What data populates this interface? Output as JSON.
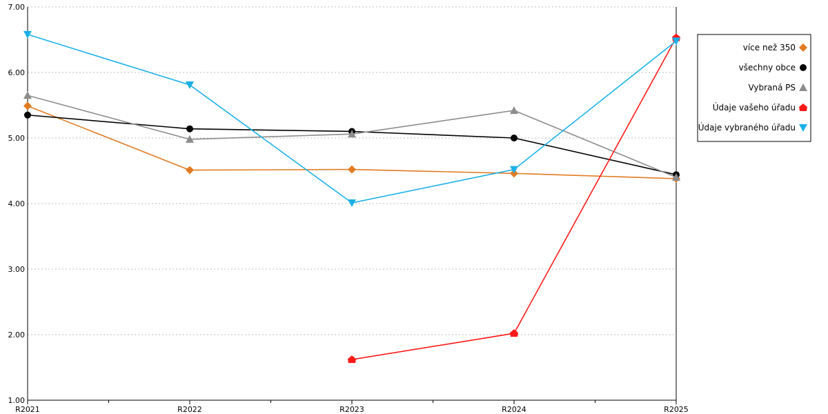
{
  "chart_data": {
    "type": "line",
    "categories": [
      "R2021",
      "R2022",
      "R2023",
      "R2024",
      "R2025"
    ],
    "ylim": [
      1.0,
      7.0
    ],
    "yticks": [
      "1.00",
      "2.00",
      "3.00",
      "4.00",
      "5.00",
      "6.00",
      "7.00"
    ],
    "grid": "horizontal-dotted",
    "legend_position": "right",
    "series": [
      {
        "name": "více než 350",
        "color": "#e07b21",
        "marker": "diamond",
        "values": [
          5.49,
          4.51,
          4.52,
          4.46,
          4.38
        ]
      },
      {
        "name": "všechny obce",
        "color": "#000000",
        "marker": "circle",
        "values": [
          5.35,
          5.14,
          5.1,
          5.0,
          4.44
        ]
      },
      {
        "name": "Vybraná PS",
        "color": "#8c8c8c",
        "marker": "triangle-up",
        "values": [
          5.65,
          4.98,
          5.06,
          5.42,
          4.4
        ]
      },
      {
        "name": "Údaje vašeho úřadu",
        "color": "#ff1a1a",
        "marker": "pentagon",
        "values": [
          null,
          null,
          1.62,
          2.02,
          6.53
        ]
      },
      {
        "name": "Údaje vybraného úřadu",
        "color": "#1ab0e8",
        "marker": "triangle-down",
        "values": [
          6.58,
          5.81,
          4.01,
          4.52,
          6.48
        ]
      }
    ]
  }
}
